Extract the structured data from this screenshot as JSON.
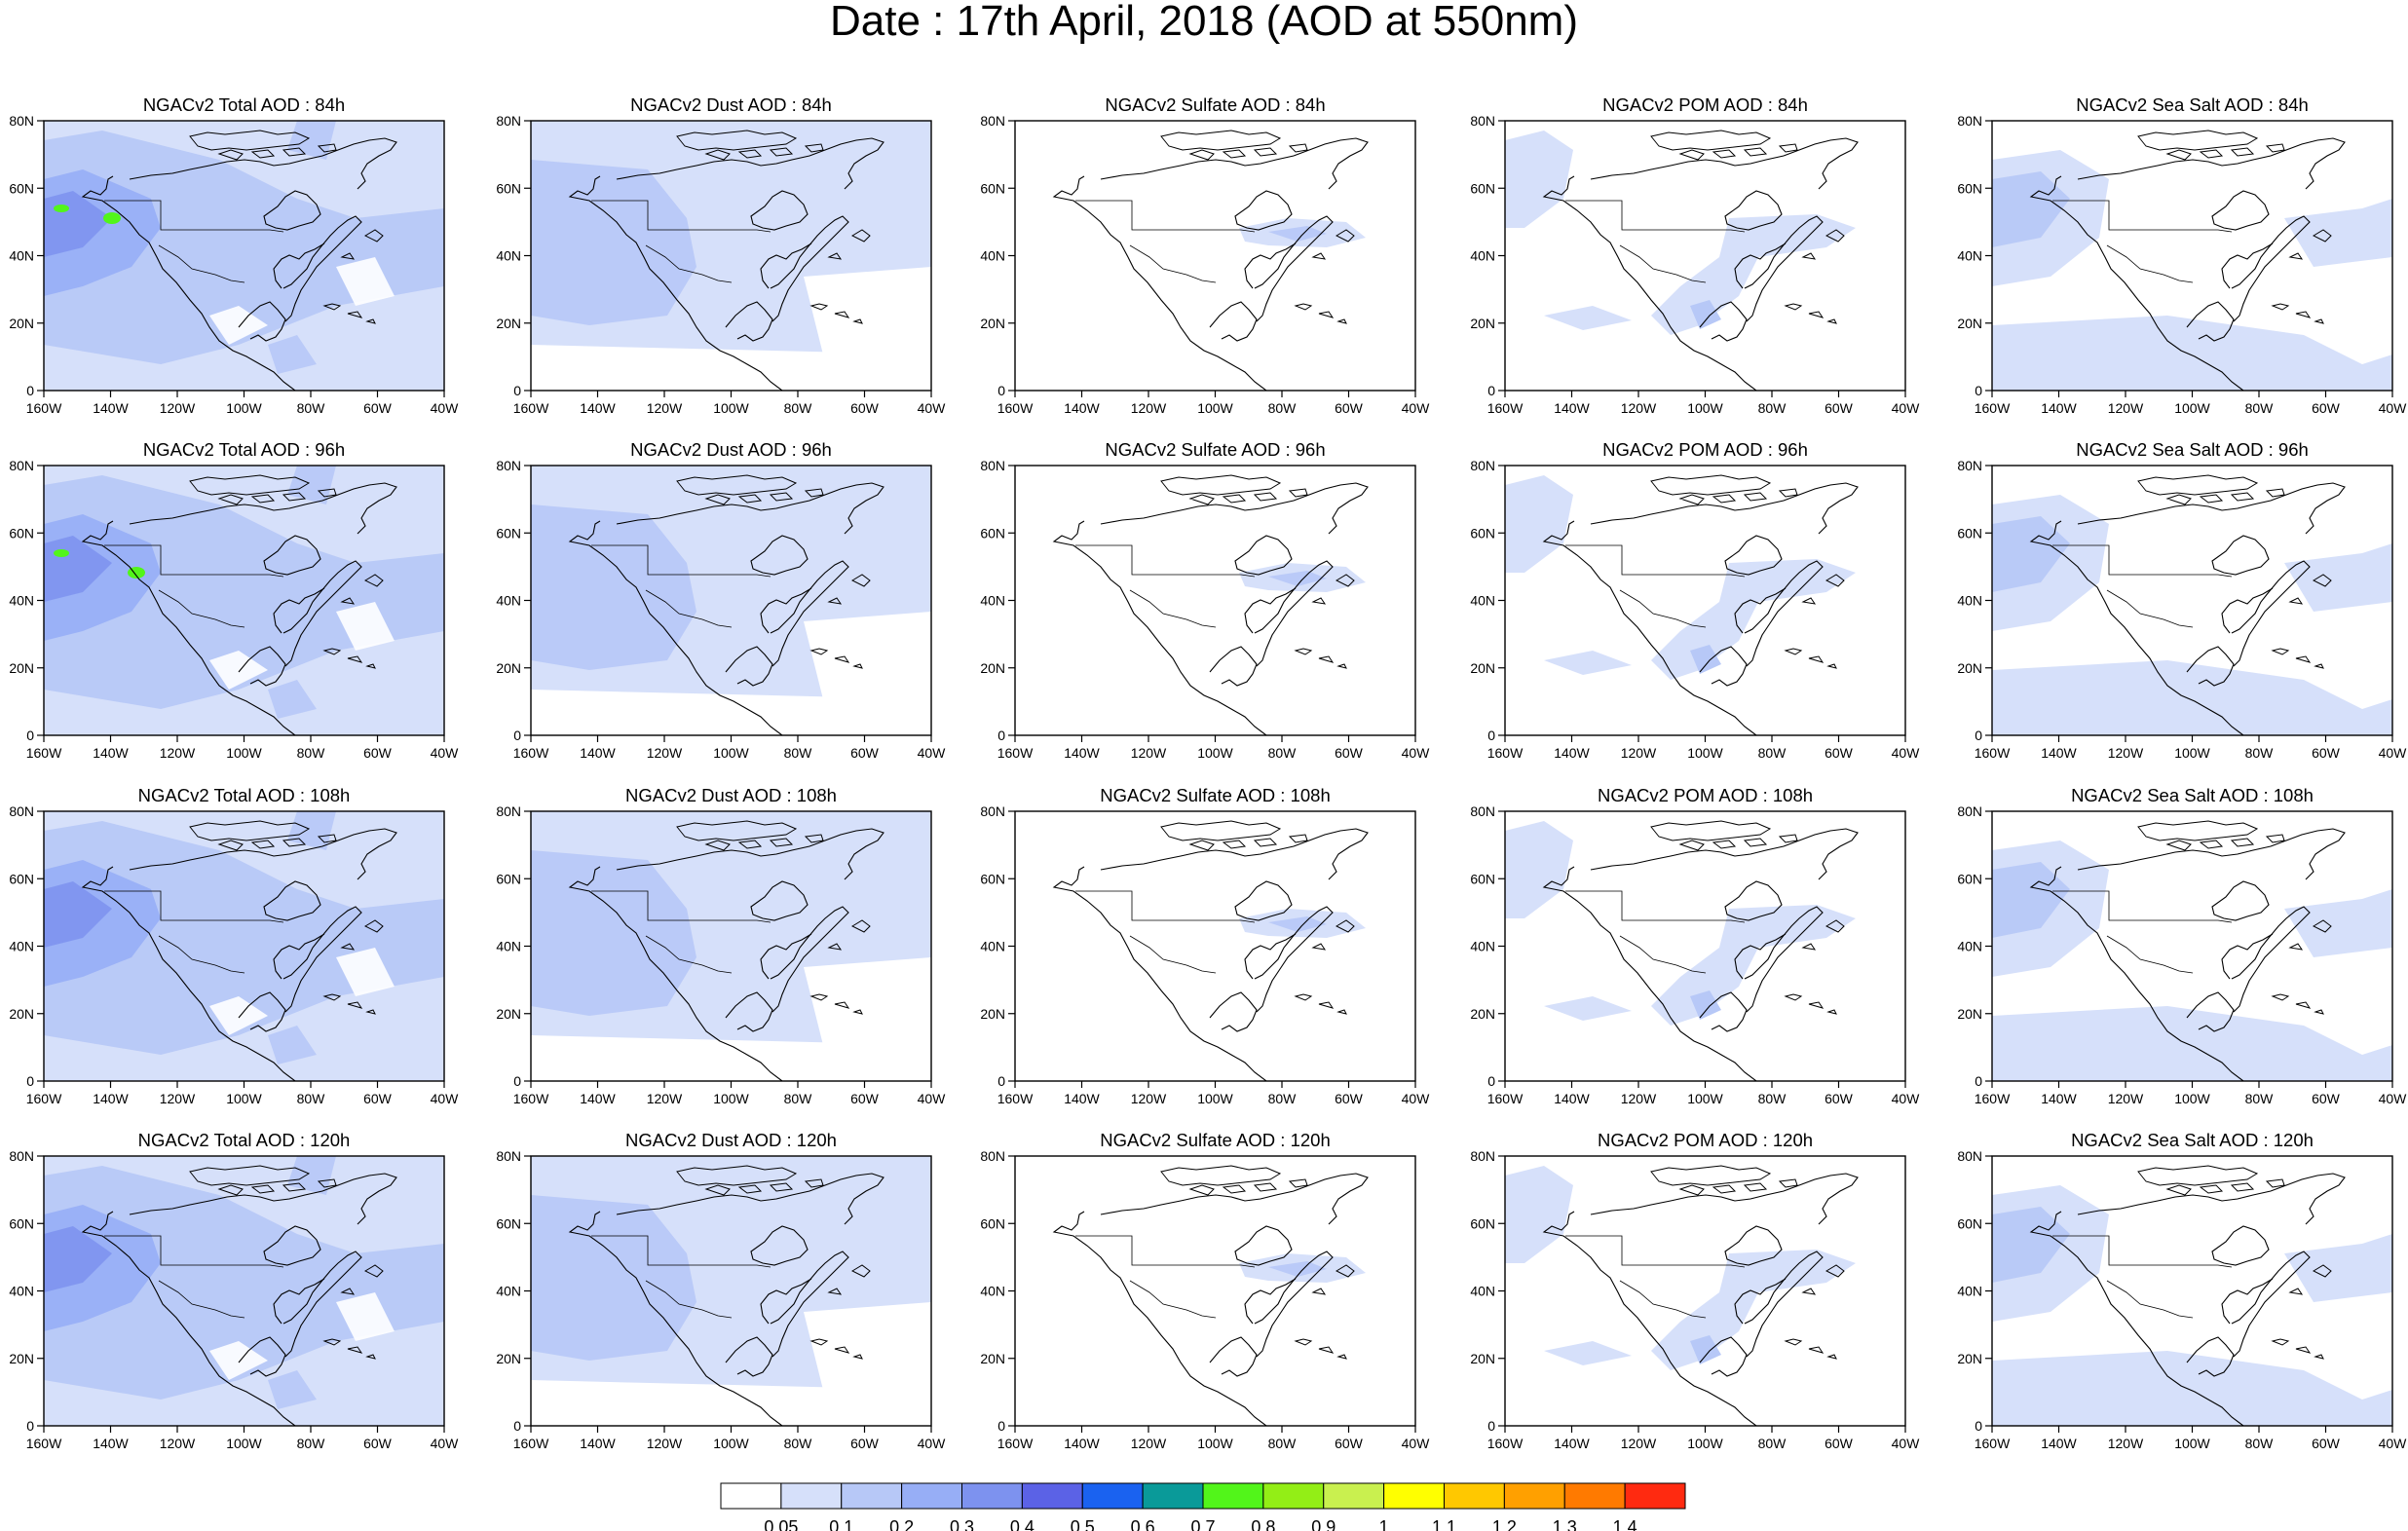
{
  "title": "Date : 17th April, 2018 (AOD at 550nm)",
  "rows": [
    "84h",
    "96h",
    "108h",
    "120h"
  ],
  "panels": [
    [
      "NGACv2 Total AOD : 84h",
      "NGACv2 Dust AOD : 84h",
      "NGACv2 Sulfate AOD : 84h",
      "NGACv2 POM AOD : 84h",
      "NGACv2 Sea Salt AOD : 84h"
    ],
    [
      "NGACv2 Total AOD : 96h",
      "NGACv2 Dust AOD : 96h",
      "NGACv2 Sulfate AOD : 96h",
      "NGACv2 POM AOD : 96h",
      "NGACv2 Sea Salt AOD : 96h"
    ],
    [
      "NGACv2 Total AOD : 108h",
      "NGACv2 Dust AOD : 108h",
      "NGACv2 Sulfate AOD : 108h",
      "NGACv2 POM AOD : 108h",
      "NGACv2 Sea Salt AOD : 108h"
    ],
    [
      "NGACv2 Total AOD : 120h",
      "NGACv2 Dust AOD : 120h",
      "NGACv2 Sulfate AOD : 120h",
      "NGACv2 POM AOD : 120h",
      "NGACv2 Sea Salt  AOD : 120h"
    ]
  ],
  "lon_ticks": [
    "160W",
    "140W",
    "120W",
    "100W",
    "80W",
    "60W",
    "40W"
  ],
  "lat_ticks": [
    "0",
    "20N",
    "40N",
    "60N",
    "80N"
  ],
  "lon_range": [
    -160,
    -40
  ],
  "lat_range": [
    0,
    80
  ],
  "colorbar": {
    "labels": [
      "0.05",
      "0.1",
      "0.2",
      "0.3",
      "0.4",
      "0.5",
      "0.6",
      "0.7",
      "0.8",
      "0.9",
      "1",
      "1.1",
      "1.2",
      "1.3",
      "1.4"
    ],
    "colors": [
      "#ffffff",
      "#d6e0fa",
      "#b7c8f7",
      "#97aef6",
      "#7d92ef",
      "#5b62e6",
      "#1a62f0",
      "#0a9a99",
      "#52f51a",
      "#93ee16",
      "#c9f04f",
      "#ffff00",
      "#ffc800",
      "#ffa000",
      "#ff7a00",
      "#ff2a10"
    ]
  },
  "shade_colors": {
    "light": "#d6e0fa",
    "mid": "#b7c8f7",
    "strong": "#97aef6",
    "deep": "#7d92ef",
    "peak": "#5b62e6",
    "green": "#52f51a"
  }
}
